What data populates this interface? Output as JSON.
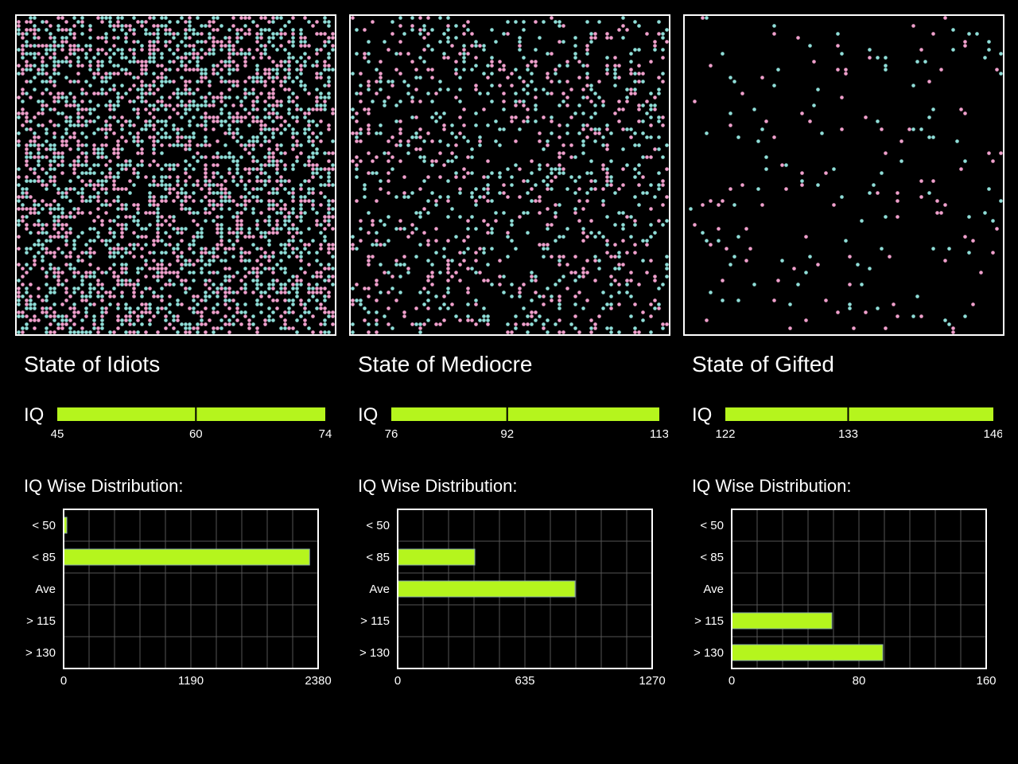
{
  "colors": {
    "background": "#000000",
    "accent": "#b5f51d",
    "teal": "#8fded8",
    "pink": "#f0a0cc",
    "frame": "#ffffff",
    "grid": "#555555"
  },
  "states": [
    {
      "title": "State of Idiots",
      "iq_label": "IQ",
      "iq_scale": {
        "min": 45,
        "mid": 60,
        "max": 74
      },
      "distribution_title": "IQ Wise Distribution:",
      "population_density": 0.95
    },
    {
      "title": "State of Mediocre",
      "iq_label": "IQ",
      "iq_scale": {
        "min": 76,
        "mid": 92,
        "max": 113
      },
      "distribution_title": "IQ Wise Distribution:",
      "population_density": 0.42
    },
    {
      "title": "State of Gifted",
      "iq_label": "IQ",
      "iq_scale": {
        "min": 122,
        "mid": 133,
        "max": 146
      },
      "distribution_title": "IQ Wise Distribution:",
      "population_density": 0.07
    }
  ],
  "chart_data": [
    {
      "type": "bar",
      "orientation": "horizontal",
      "categories": [
        "< 50",
        "< 85",
        "Ave",
        "> 115",
        "> 130"
      ],
      "values": [
        30,
        2300,
        0,
        0,
        0
      ],
      "xlim": [
        0,
        2380
      ],
      "xticks": [
        0,
        1190,
        2380
      ],
      "grid": true
    },
    {
      "type": "bar",
      "orientation": "horizontal",
      "categories": [
        "< 50",
        "< 85",
        "Ave",
        "> 115",
        "> 130"
      ],
      "values": [
        0,
        385,
        885,
        0,
        0
      ],
      "xlim": [
        0,
        1270
      ],
      "xticks": [
        0,
        635,
        1270
      ],
      "grid": true
    },
    {
      "type": "bar",
      "orientation": "horizontal",
      "categories": [
        "< 50",
        "< 85",
        "Ave",
        "> 115",
        "> 130"
      ],
      "values": [
        0,
        0,
        0,
        63,
        95
      ],
      "xlim": [
        0,
        160
      ],
      "xticks": [
        0,
        80,
        160
      ],
      "grid": true
    }
  ]
}
